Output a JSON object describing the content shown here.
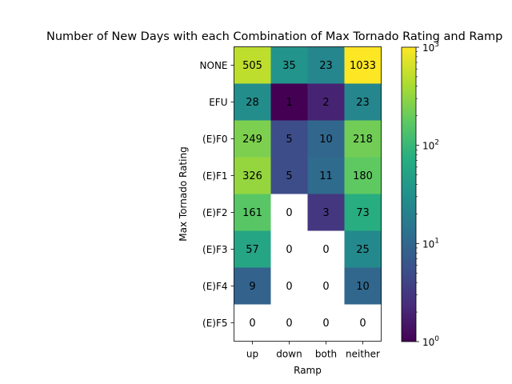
{
  "chart_data": {
    "type": "heatmap",
    "title": "Number of New Days with each Combination of Max Tornado Rating and Ramp",
    "xlabel": "Ramp",
    "ylabel": "Max Tornado Rating",
    "x_categories": [
      "up",
      "down",
      "both",
      "neither"
    ],
    "y_categories": [
      "NONE",
      "EFU",
      "(E)F0",
      "(E)F1",
      "(E)F2",
      "(E)F3",
      "(E)F4",
      "(E)F5"
    ],
    "values": [
      [
        505,
        35,
        23,
        1033
      ],
      [
        28,
        1,
        2,
        23
      ],
      [
        249,
        5,
        10,
        218
      ],
      [
        326,
        5,
        11,
        180
      ],
      [
        161,
        0,
        3,
        73
      ],
      [
        57,
        0,
        0,
        25
      ],
      [
        9,
        0,
        0,
        10
      ],
      [
        0,
        0,
        0,
        0
      ]
    ],
    "colorscale": "viridis",
    "color_scale_type": "log",
    "color_range": [
      1,
      1000
    ],
    "zero_color": "#ffffff",
    "colorbar_ticks": [
      {
        "value": 1,
        "base": "10",
        "exp": "0"
      },
      {
        "value": 10,
        "base": "10",
        "exp": "1"
      },
      {
        "value": 100,
        "base": "10",
        "exp": "2"
      },
      {
        "value": 1000,
        "base": "10",
        "exp": "3"
      }
    ]
  }
}
